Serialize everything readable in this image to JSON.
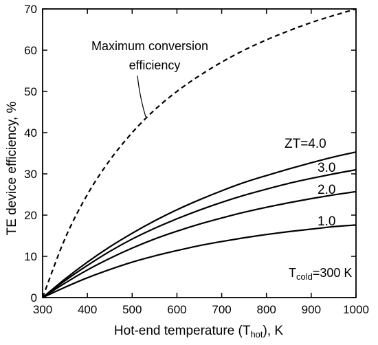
{
  "chart_data": {
    "type": "line",
    "xlabel": {
      "main": "Hot-end temperature (T",
      "sub": "hot",
      "tail": "), K"
    },
    "ylabel": "TE device efficiency, %",
    "xlim": [
      300,
      1000
    ],
    "ylim": [
      0,
      70
    ],
    "xticks": [
      300,
      400,
      500,
      600,
      700,
      800,
      900,
      1000
    ],
    "yticks": [
      0,
      10,
      20,
      30,
      40,
      50,
      60,
      70
    ],
    "grid": false,
    "legend": "none",
    "series": [
      {
        "name": "Maximum conversion efficiency",
        "label_lines": [
          "Maximum conversion",
          "efficiency"
        ],
        "style": "dashed",
        "color": "#000000",
        "x": [
          300,
          350,
          400,
          450,
          500,
          550,
          600,
          650,
          700,
          750,
          800,
          850,
          900,
          950,
          1000
        ],
        "y": [
          0,
          14.3,
          25.0,
          33.3,
          40.0,
          45.5,
          50.0,
          53.8,
          57.1,
          60.0,
          62.5,
          64.7,
          66.7,
          68.4,
          70.0
        ]
      },
      {
        "name": "ZT=4.0",
        "style": "solid",
        "color": "#000000",
        "x": [
          300,
          350,
          400,
          450,
          500,
          550,
          600,
          650,
          700,
          750,
          800,
          850,
          900,
          950,
          1000
        ],
        "y": [
          0,
          4.5,
          8.6,
          12.3,
          15.6,
          18.6,
          21.3,
          23.7,
          25.9,
          27.9,
          29.6,
          31.2,
          32.7,
          34.1,
          35.3
        ]
      },
      {
        "name": "3.0",
        "style": "solid",
        "color": "#000000",
        "x": [
          300,
          350,
          400,
          450,
          500,
          550,
          600,
          650,
          700,
          750,
          800,
          850,
          900,
          950,
          1000
        ],
        "y": [
          0,
          4.1,
          7.8,
          11.2,
          14.2,
          16.8,
          19.1,
          21.2,
          23.1,
          24.8,
          26.3,
          27.7,
          28.9,
          30.0,
          31.0
        ]
      },
      {
        "name": "2.0",
        "style": "solid",
        "color": "#000000",
        "x": [
          300,
          350,
          400,
          450,
          500,
          550,
          600,
          650,
          700,
          750,
          800,
          850,
          900,
          950,
          1000
        ],
        "y": [
          0,
          3.5,
          6.7,
          9.5,
          12.0,
          14.2,
          16.1,
          17.8,
          19.3,
          20.7,
          21.9,
          23.0,
          24.0,
          24.9,
          25.7
        ]
      },
      {
        "name": "1.0",
        "style": "solid",
        "color": "#000000",
        "x": [
          300,
          350,
          400,
          450,
          500,
          550,
          600,
          650,
          700,
          750,
          800,
          850,
          900,
          950,
          1000
        ],
        "y": [
          0,
          2.5,
          4.8,
          6.8,
          8.6,
          10.1,
          11.4,
          12.6,
          13.6,
          14.5,
          15.3,
          16.0,
          16.6,
          17.2,
          17.6
        ]
      }
    ],
    "annotations": {
      "tcold": {
        "main": "T",
        "sub": "cold",
        "tail": "=300 K"
      }
    }
  }
}
